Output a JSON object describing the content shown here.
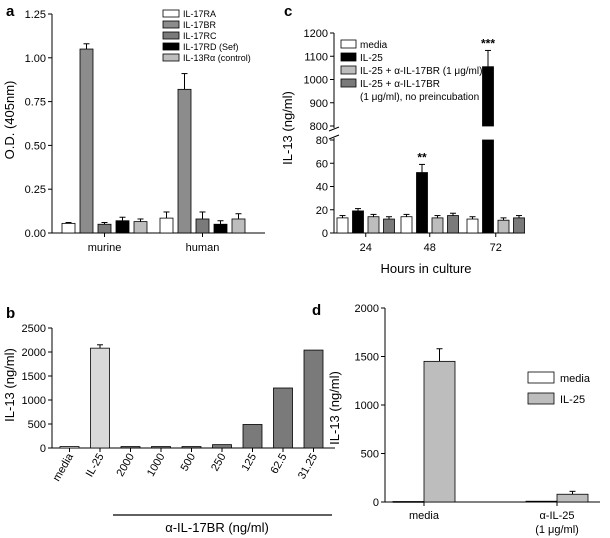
{
  "figure": {
    "panels": [
      "a",
      "b",
      "c",
      "d"
    ]
  },
  "chart_data": [
    {
      "panel": "a",
      "type": "bar",
      "ylabel": "O.D. (405nm)",
      "ylim": [
        0,
        1.25
      ],
      "yticks": [
        "0.00",
        "0.25",
        "0.50",
        "0.75",
        "1.00",
        "1.25"
      ],
      "categories": [
        "murine",
        "human"
      ],
      "legend_position": "top-right",
      "series": [
        {
          "name": "IL-17RA",
          "color": "#ffffff",
          "values": [
            0.055,
            0.085
          ],
          "errors": [
            0.005,
            0.035
          ]
        },
        {
          "name": "IL-17BR",
          "color": "#8c8c8c",
          "values": [
            1.05,
            0.82
          ],
          "errors": [
            0.03,
            0.09
          ]
        },
        {
          "name": "IL-17RC",
          "color": "#7a7a7a",
          "values": [
            0.05,
            0.08
          ],
          "errors": [
            0.01,
            0.04
          ]
        },
        {
          "name": "IL-17RD (Sef)",
          "color": "#000000",
          "values": [
            0.07,
            0.05
          ],
          "errors": [
            0.02,
            0.02
          ]
        },
        {
          "name": "IL-13Rα (control)",
          "color": "#bdbdbd",
          "values": [
            0.065,
            0.08
          ],
          "errors": [
            0.015,
            0.03
          ]
        }
      ]
    },
    {
      "panel": "b",
      "type": "bar",
      "ylabel": "IL-13 (ng/ml)",
      "xlabel": "α-IL-17BR (ng/ml)",
      "ylim": [
        0,
        2500
      ],
      "yticks": [
        "0",
        "500",
        "1000",
        "1500",
        "2000",
        "2500"
      ],
      "categories": [
        "media",
        "IL-25",
        "2000",
        "1000",
        "500",
        "250",
        "125",
        "62.5",
        "31.25"
      ],
      "values": [
        30,
        2080,
        30,
        30,
        30,
        70,
        490,
        1250,
        2040
      ],
      "errors": [
        0,
        70,
        0,
        0,
        0,
        0,
        0,
        0,
        0
      ],
      "colors": [
        "#ffffff",
        "#d9d9d9",
        "#7a7a7a",
        "#7a7a7a",
        "#7a7a7a",
        "#7a7a7a",
        "#7a7a7a",
        "#7a7a7a",
        "#7a7a7a"
      ]
    },
    {
      "panel": "c",
      "type": "bar",
      "ylabel": "IL-13 (ng/ml)",
      "xlabel": "Hours in culture",
      "ylim_lower": [
        0,
        80
      ],
      "ylim_upper": [
        800,
        1200
      ],
      "yticks_lower": [
        "0",
        "20",
        "40",
        "60",
        "80"
      ],
      "yticks_upper": [
        "800",
        "900",
        "1000",
        "1100",
        "1200"
      ],
      "categories": [
        "24",
        "48",
        "72"
      ],
      "legend_position": "top-right",
      "series": [
        {
          "name": "media",
          "legend": [
            "media"
          ],
          "color": "#ffffff",
          "values": [
            13,
            14,
            12
          ],
          "errors": [
            2,
            2,
            2
          ]
        },
        {
          "name": "IL-25",
          "legend": [
            "IL-25"
          ],
          "color": "#000000",
          "values": [
            19,
            52,
            1055
          ],
          "errors": [
            2,
            7,
            70
          ]
        },
        {
          "name": "IL-25 + α-IL-17BR (1 μg/ml)",
          "legend": [
            "IL-25 + α-IL-17BR (1 μg/ml)"
          ],
          "color": "#bdbdbd",
          "values": [
            14,
            13,
            11
          ],
          "errors": [
            2,
            2,
            2
          ]
        },
        {
          "name": "IL-25 + α-IL-17BR (1 μg/ml), no preincubation",
          "legend": [
            "IL-25 + α-IL-17BR",
            "(1 μg/ml), no preincubation"
          ],
          "color": "#7a7a7a",
          "values": [
            12,
            15,
            13
          ],
          "errors": [
            2,
            2,
            2
          ]
        }
      ],
      "annotations": [
        {
          "category": "48",
          "text": "**"
        },
        {
          "category": "72",
          "text": "***"
        }
      ]
    },
    {
      "panel": "d",
      "type": "bar",
      "ylabel": "IL-13 (ng/ml)",
      "ylim": [
        0,
        2000
      ],
      "yticks": [
        "0",
        "500",
        "1000",
        "1500",
        "2000"
      ],
      "categories": [
        "media",
        "α-IL-25"
      ],
      "category_sublabels": [
        "",
        "(1 μg/ml)"
      ],
      "legend_position": "right",
      "series": [
        {
          "name": "media",
          "color": "#ffffff",
          "values": [
            5,
            8
          ],
          "errors": [
            0,
            3
          ]
        },
        {
          "name": "IL-25",
          "color": "#bdbdbd",
          "values": [
            1450,
            80
          ],
          "errors": [
            130,
            30
          ]
        }
      ]
    }
  ]
}
